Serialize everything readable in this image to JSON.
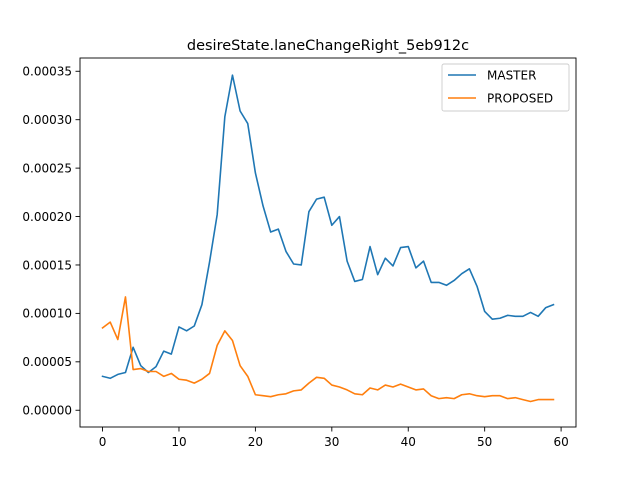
{
  "chart_data": {
    "type": "line",
    "title": "desireState.laneChangeRight_5eb912c",
    "xlabel": "",
    "ylabel": "",
    "xlim": [
      -2.95,
      61.95
    ],
    "ylim": [
      -1.73e-05,
      0.0003637
    ],
    "x_ticks": [
      0,
      10,
      20,
      30,
      40,
      50,
      60
    ],
    "x_tick_labels": [
      "0",
      "10",
      "20",
      "30",
      "40",
      "50",
      "60"
    ],
    "y_ticks": [
      0,
      5e-05,
      0.0001,
      0.00015,
      0.0002,
      0.00025,
      0.0003,
      0.00035
    ],
    "y_tick_labels": [
      "0.00000",
      "0.00005",
      "0.00010",
      "0.00015",
      "0.00020",
      "0.00025",
      "0.00030",
      "0.00035"
    ],
    "grid": false,
    "legend_position": "top-right",
    "x": [
      0,
      1,
      2,
      3,
      4,
      5,
      6,
      7,
      8,
      9,
      10,
      11,
      12,
      13,
      14,
      15,
      16,
      17,
      18,
      19,
      20,
      21,
      22,
      23,
      24,
      25,
      26,
      27,
      28,
      29,
      30,
      31,
      32,
      33,
      34,
      35,
      36,
      37,
      38,
      39,
      40,
      41,
      42,
      43,
      44,
      45,
      46,
      47,
      48,
      49,
      50,
      51,
      52,
      53,
      54,
      55,
      56,
      57,
      58,
      59
    ],
    "series": [
      {
        "name": "MASTER",
        "color": "#1f77b4",
        "values": [
          3.5e-05,
          3.3e-05,
          3.7e-05,
          3.9e-05,
          6.5e-05,
          4.6e-05,
          3.9e-05,
          4.5e-05,
          6.1e-05,
          5.8e-05,
          8.6e-05,
          8.2e-05,
          8.7e-05,
          0.000109,
          0.000153,
          0.000202,
          0.000303,
          0.000346,
          0.000309,
          0.000296,
          0.000245,
          0.000211,
          0.000184,
          0.000187,
          0.000164,
          0.000151,
          0.00015,
          0.000205,
          0.000218,
          0.00022,
          0.000191,
          0.0002,
          0.000154,
          0.000133,
          0.000135,
          0.000169,
          0.00014,
          0.000157,
          0.000149,
          0.000168,
          0.000169,
          0.000147,
          0.000154,
          0.000132,
          0.000132,
          0.000129,
          0.000134,
          0.000141,
          0.000146,
          0.000128,
          0.000102,
          9.4e-05,
          9.5e-05,
          9.8e-05,
          9.7e-05,
          9.7e-05,
          0.000101,
          9.7e-05,
          0.000106,
          0.000109
        ]
      },
      {
        "name": "PROPOSED",
        "color": "#ff7f0e",
        "values": [
          8.5e-05,
          9.1e-05,
          7.3e-05,
          0.000117,
          4.2e-05,
          4.3e-05,
          4e-05,
          4e-05,
          3.5e-05,
          3.8e-05,
          3.2e-05,
          3.1e-05,
          2.8e-05,
          3.2e-05,
          3.8e-05,
          6.7e-05,
          8.2e-05,
          7.2e-05,
          4.6e-05,
          3.5e-05,
          1.6e-05,
          1.5e-05,
          1.4e-05,
          1.6e-05,
          1.7e-05,
          2e-05,
          2.1e-05,
          2.8e-05,
          3.4e-05,
          3.3e-05,
          2.6e-05,
          2.4e-05,
          2.1e-05,
          1.7e-05,
          1.6e-05,
          2.3e-05,
          2.1e-05,
          2.6e-05,
          2.4e-05,
          2.7e-05,
          2.4e-05,
          2.1e-05,
          2.2e-05,
          1.5e-05,
          1.2e-05,
          1.3e-05,
          1.2e-05,
          1.6e-05,
          1.7e-05,
          1.5e-05,
          1.4e-05,
          1.5e-05,
          1.5e-05,
          1.2e-05,
          1.3e-05,
          1.1e-05,
          9e-06,
          1.1e-05,
          1.1e-05,
          1.1e-05
        ]
      }
    ]
  }
}
